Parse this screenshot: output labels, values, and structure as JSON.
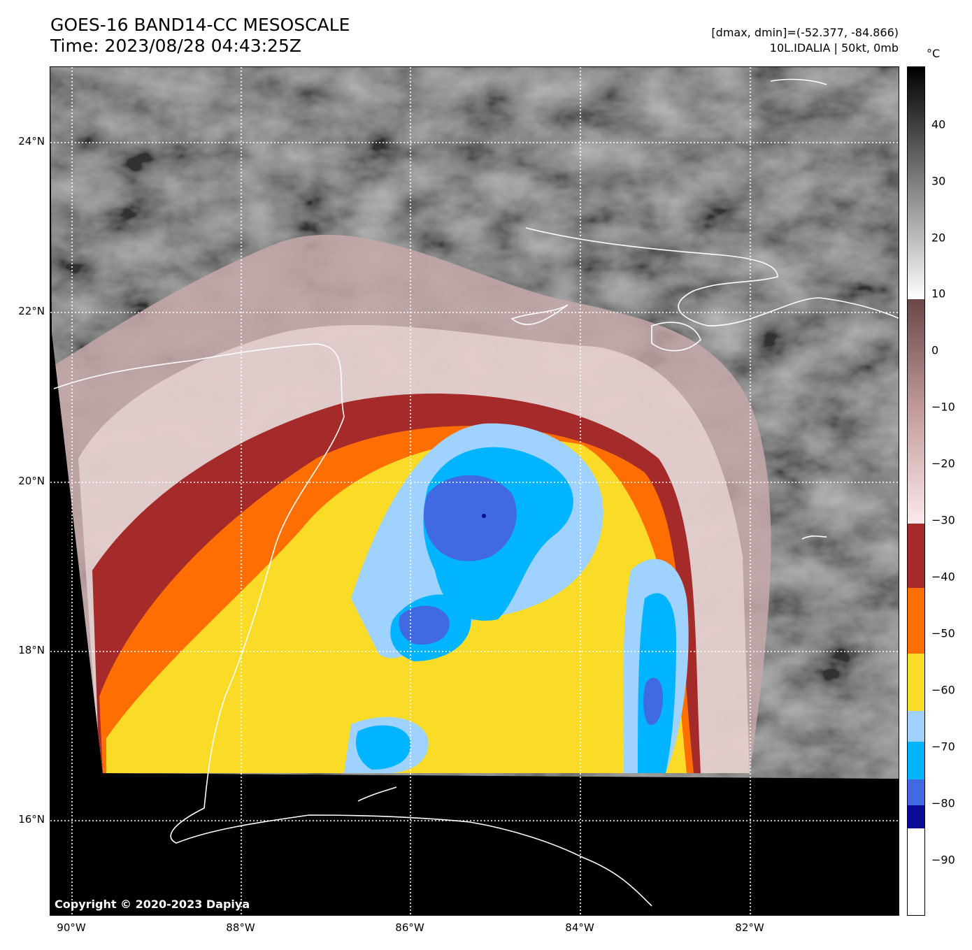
{
  "header": {
    "title_line1": "GOES-16 BAND14-CC MESOSCALE",
    "title_line2": "Time: 2023/08/28 04:43:25Z",
    "data_range": "[dmax, dmin]=(-52.377, -84.866)",
    "storm_info": "10L.IDALIA | 50kt, 0mb"
  },
  "map": {
    "lat_labels": [
      "24°N",
      "22°N",
      "20°N",
      "18°N",
      "16°N"
    ],
    "lon_labels": [
      "90°W",
      "88°W",
      "86°W",
      "84°W",
      "82°W"
    ],
    "copyright": "Copyright © 2020-2023 Dapiya"
  },
  "colorbar": {
    "unit": "°C",
    "tick_labels": [
      "40",
      "30",
      "20",
      "10",
      "0",
      "−10",
      "−20",
      "−30",
      "−40",
      "−50",
      "−60",
      "−70",
      "−80",
      "−90"
    ]
  }
}
